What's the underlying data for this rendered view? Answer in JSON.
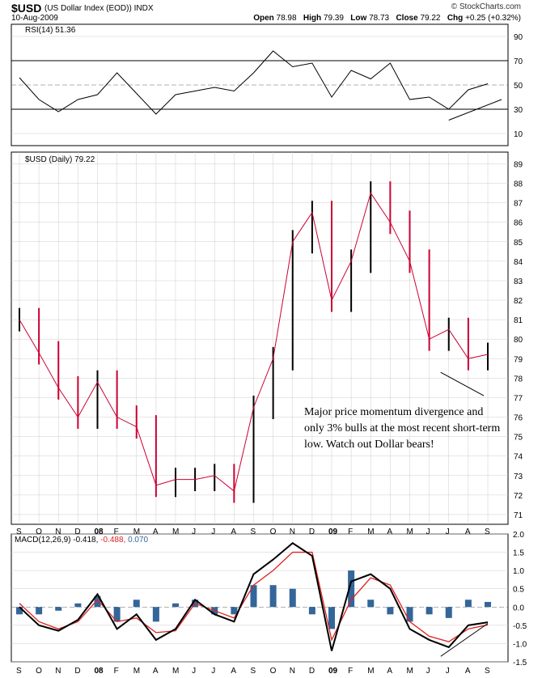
{
  "header": {
    "symbol": "$USD",
    "description": "(US Dollar Index (EOD))",
    "exchange": "INDX",
    "date": "10-Aug-2009",
    "watermark": "© StockCharts.com",
    "open_label": "Open",
    "open": "78.98",
    "high_label": "High",
    "high": "79.39",
    "low_label": "Low",
    "low": "78.73",
    "close_label": "Close",
    "close": "79.22",
    "chg_label": "Chg",
    "chg": "+0.25 (+0.32%)"
  },
  "annotation": "Major price momentum divergence and only 3% bulls at the most recent short-term low. Watch out Dollar bears!",
  "colors": {
    "up": "#000000",
    "down": "#cc0033",
    "overbought": "#4a7a4a",
    "oversold": "#8a4a4a",
    "macd": "#000000",
    "signal": "#dd2222",
    "histogram": "#336699",
    "grid": "#cccccc"
  },
  "chart_data": [
    {
      "type": "line",
      "name": "RSI",
      "legend": "RSI(14)",
      "last": "51.36",
      "ylim": [
        0,
        100
      ],
      "yticks": [
        10,
        30,
        50,
        70,
        90
      ],
      "x": [
        "Aug 2008-07",
        "Sep 2007",
        "Oct 2007",
        "Nov 2007",
        "Dec 2007",
        "Jan 2008",
        "Feb 2008",
        "Mar 2008",
        "Apr 2008",
        "May 2008",
        "Jun 2008",
        "Jul 2008",
        "Aug 2008",
        "Sep 2008",
        "Oct 2008",
        "Nov 2008",
        "Dec 2008",
        "Jan 2009",
        "Feb 2009",
        "Mar 2009",
        "Apr 2009",
        "May 2009",
        "Jun 2009",
        "Jul 2009",
        "Aug 2009"
      ],
      "values": [
        56,
        38,
        28,
        38,
        42,
        60,
        43,
        26,
        42,
        45,
        48,
        45,
        60,
        78,
        65,
        68,
        40,
        62,
        55,
        68,
        38,
        40,
        30,
        46,
        51
      ],
      "divergence_line": true
    },
    {
      "type": "candlestick",
      "name": "$USD",
      "legend": "$USD (Daily)",
      "last": "79.22",
      "ylim": [
        70.5,
        89.6
      ],
      "yticks": [
        71,
        72,
        73,
        74,
        75,
        76,
        77,
        78,
        79,
        80,
        81,
        82,
        83,
        84,
        85,
        86,
        87,
        88,
        89
      ],
      "xticks": [
        "S",
        "O",
        "N",
        "D",
        "08",
        "F",
        "M",
        "A",
        "M",
        "J",
        "J",
        "A",
        "S",
        "O",
        "N",
        "D",
        "09",
        "F",
        "M",
        "A",
        "M",
        "J",
        "J",
        "A",
        "S"
      ],
      "x": [
        "Aug 2007",
        "Sep 2007",
        "Oct 2007",
        "Nov 2007",
        "Dec 2007",
        "Jan 2008",
        "Feb 2008",
        "Mar 2008",
        "Apr 2008",
        "May 2008",
        "Jun 2008",
        "Jul 2008",
        "Aug 2008",
        "Sep 2008",
        "Oct 2008",
        "Nov 2008",
        "Dec 2008",
        "Jan 2009",
        "Feb 2009",
        "Mar 2009",
        "Apr 2009",
        "May 2009",
        "Jun 2009",
        "Jul 2009",
        "Aug 2009"
      ],
      "values": [
        81.0,
        79.3,
        77.5,
        76.0,
        77.8,
        76.0,
        75.5,
        72.5,
        72.8,
        72.8,
        73.0,
        72.2,
        76.5,
        79.0,
        85.0,
        86.5,
        82.0,
        84.0,
        87.5,
        86.0,
        84.0,
        80.0,
        80.5,
        79.0,
        79.22
      ],
      "divergence_line": true
    },
    {
      "type": "line",
      "name": "MACD",
      "legend": "MACD(12,26,9)",
      "macd_value": "-0.418",
      "signal_value": "-0.488",
      "hist_value": "0.070",
      "ylim": [
        -1.5,
        2.0
      ],
      "yticks": [
        -1.5,
        -1.0,
        -0.5,
        0.0,
        0.5,
        1.0,
        1.5,
        2.0
      ],
      "x": [
        "Aug 2007",
        "Sep 2007",
        "Oct 2007",
        "Nov 2007",
        "Dec 2007",
        "Jan 2008",
        "Feb 2008",
        "Mar 2008",
        "Apr 2008",
        "May 2008",
        "Jun 2008",
        "Jul 2008",
        "Aug 2008",
        "Sep 2008",
        "Oct 2008",
        "Nov 2008",
        "Dec 2008",
        "Jan 2009",
        "Feb 2009",
        "Mar 2009",
        "Apr 2009",
        "May 2009",
        "Jun 2009",
        "Jul 2009",
        "Aug 2009"
      ],
      "series": [
        {
          "name": "MACD",
          "values": [
            0.0,
            -0.5,
            -0.65,
            -0.35,
            0.35,
            -0.6,
            -0.2,
            -0.9,
            -0.6,
            0.2,
            -0.2,
            -0.4,
            0.9,
            1.3,
            1.75,
            1.4,
            -1.2,
            0.7,
            0.9,
            0.5,
            -0.6,
            -0.9,
            -1.1,
            -0.5,
            -0.418
          ]
        },
        {
          "name": "Signal",
          "values": [
            0.1,
            -0.4,
            -0.6,
            -0.4,
            0.2,
            -0.4,
            -0.3,
            -0.7,
            -0.65,
            0.1,
            -0.1,
            -0.3,
            0.6,
            1.0,
            1.5,
            1.5,
            -0.9,
            0.2,
            0.8,
            0.6,
            -0.4,
            -0.8,
            -0.95,
            -0.6,
            -0.488
          ]
        }
      ],
      "divergence_line": true
    }
  ]
}
